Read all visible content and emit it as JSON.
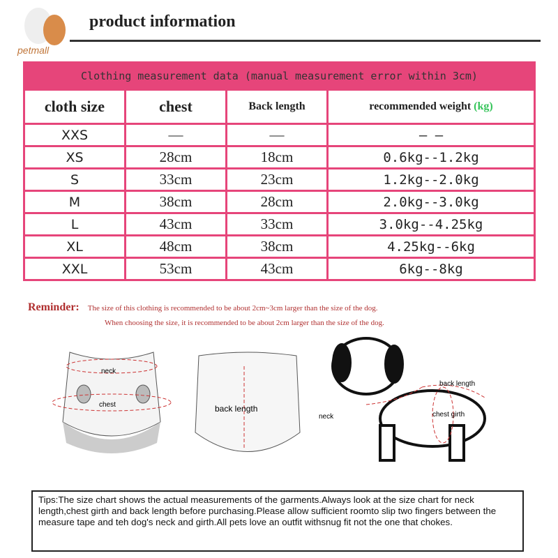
{
  "header": {
    "title": "product information",
    "logo": "petmall"
  },
  "table": {
    "caption": "Clothing measurement data (manual measurement error within 3cm)",
    "columns": [
      "cloth size",
      "chest",
      "Back length",
      "recommended weight"
    ],
    "weight_unit": "(kg)",
    "rows": [
      [
        "XXS",
        "—",
        "—",
        "—   —"
      ],
      [
        "XS",
        "28cm",
        "18cm",
        "0.6kg--1.2kg"
      ],
      [
        "S",
        "33cm",
        "23cm",
        "1.2kg--2.0kg"
      ],
      [
        "M",
        "38cm",
        "28cm",
        "2.0kg--3.0kg"
      ],
      [
        "L",
        "43cm",
        "33cm",
        "3.0kg--4.25kg"
      ],
      [
        "XL",
        "48cm",
        "38cm",
        "4.25kg--6kg"
      ],
      [
        "XXL",
        "53cm",
        "43cm",
        "6kg--8kg"
      ]
    ]
  },
  "reminder": {
    "label": "Reminder:",
    "line1": "The size of this clothing is recommended to be about 2cm~3cm larger than the size of the dog.",
    "line2": "When choosing the size, it is recommended to be about 2cm larger than the size of the dog."
  },
  "diagram": {
    "neck": "neck",
    "chest": "chest",
    "back_length": "back length",
    "dog_back_length": "back length",
    "dog_neck": "neck",
    "dog_chest": "chest girth"
  },
  "tips": "Tips:The size chart shows the actual measurements of the garments.Always look at the size chart for neck length,chest girth and back length before purchasing.Please allow sufficient roomto slip two fingers between the measure tape and teh dog's neck and girth.All pets love an outfit withsnug fit not the one that chokes."
}
